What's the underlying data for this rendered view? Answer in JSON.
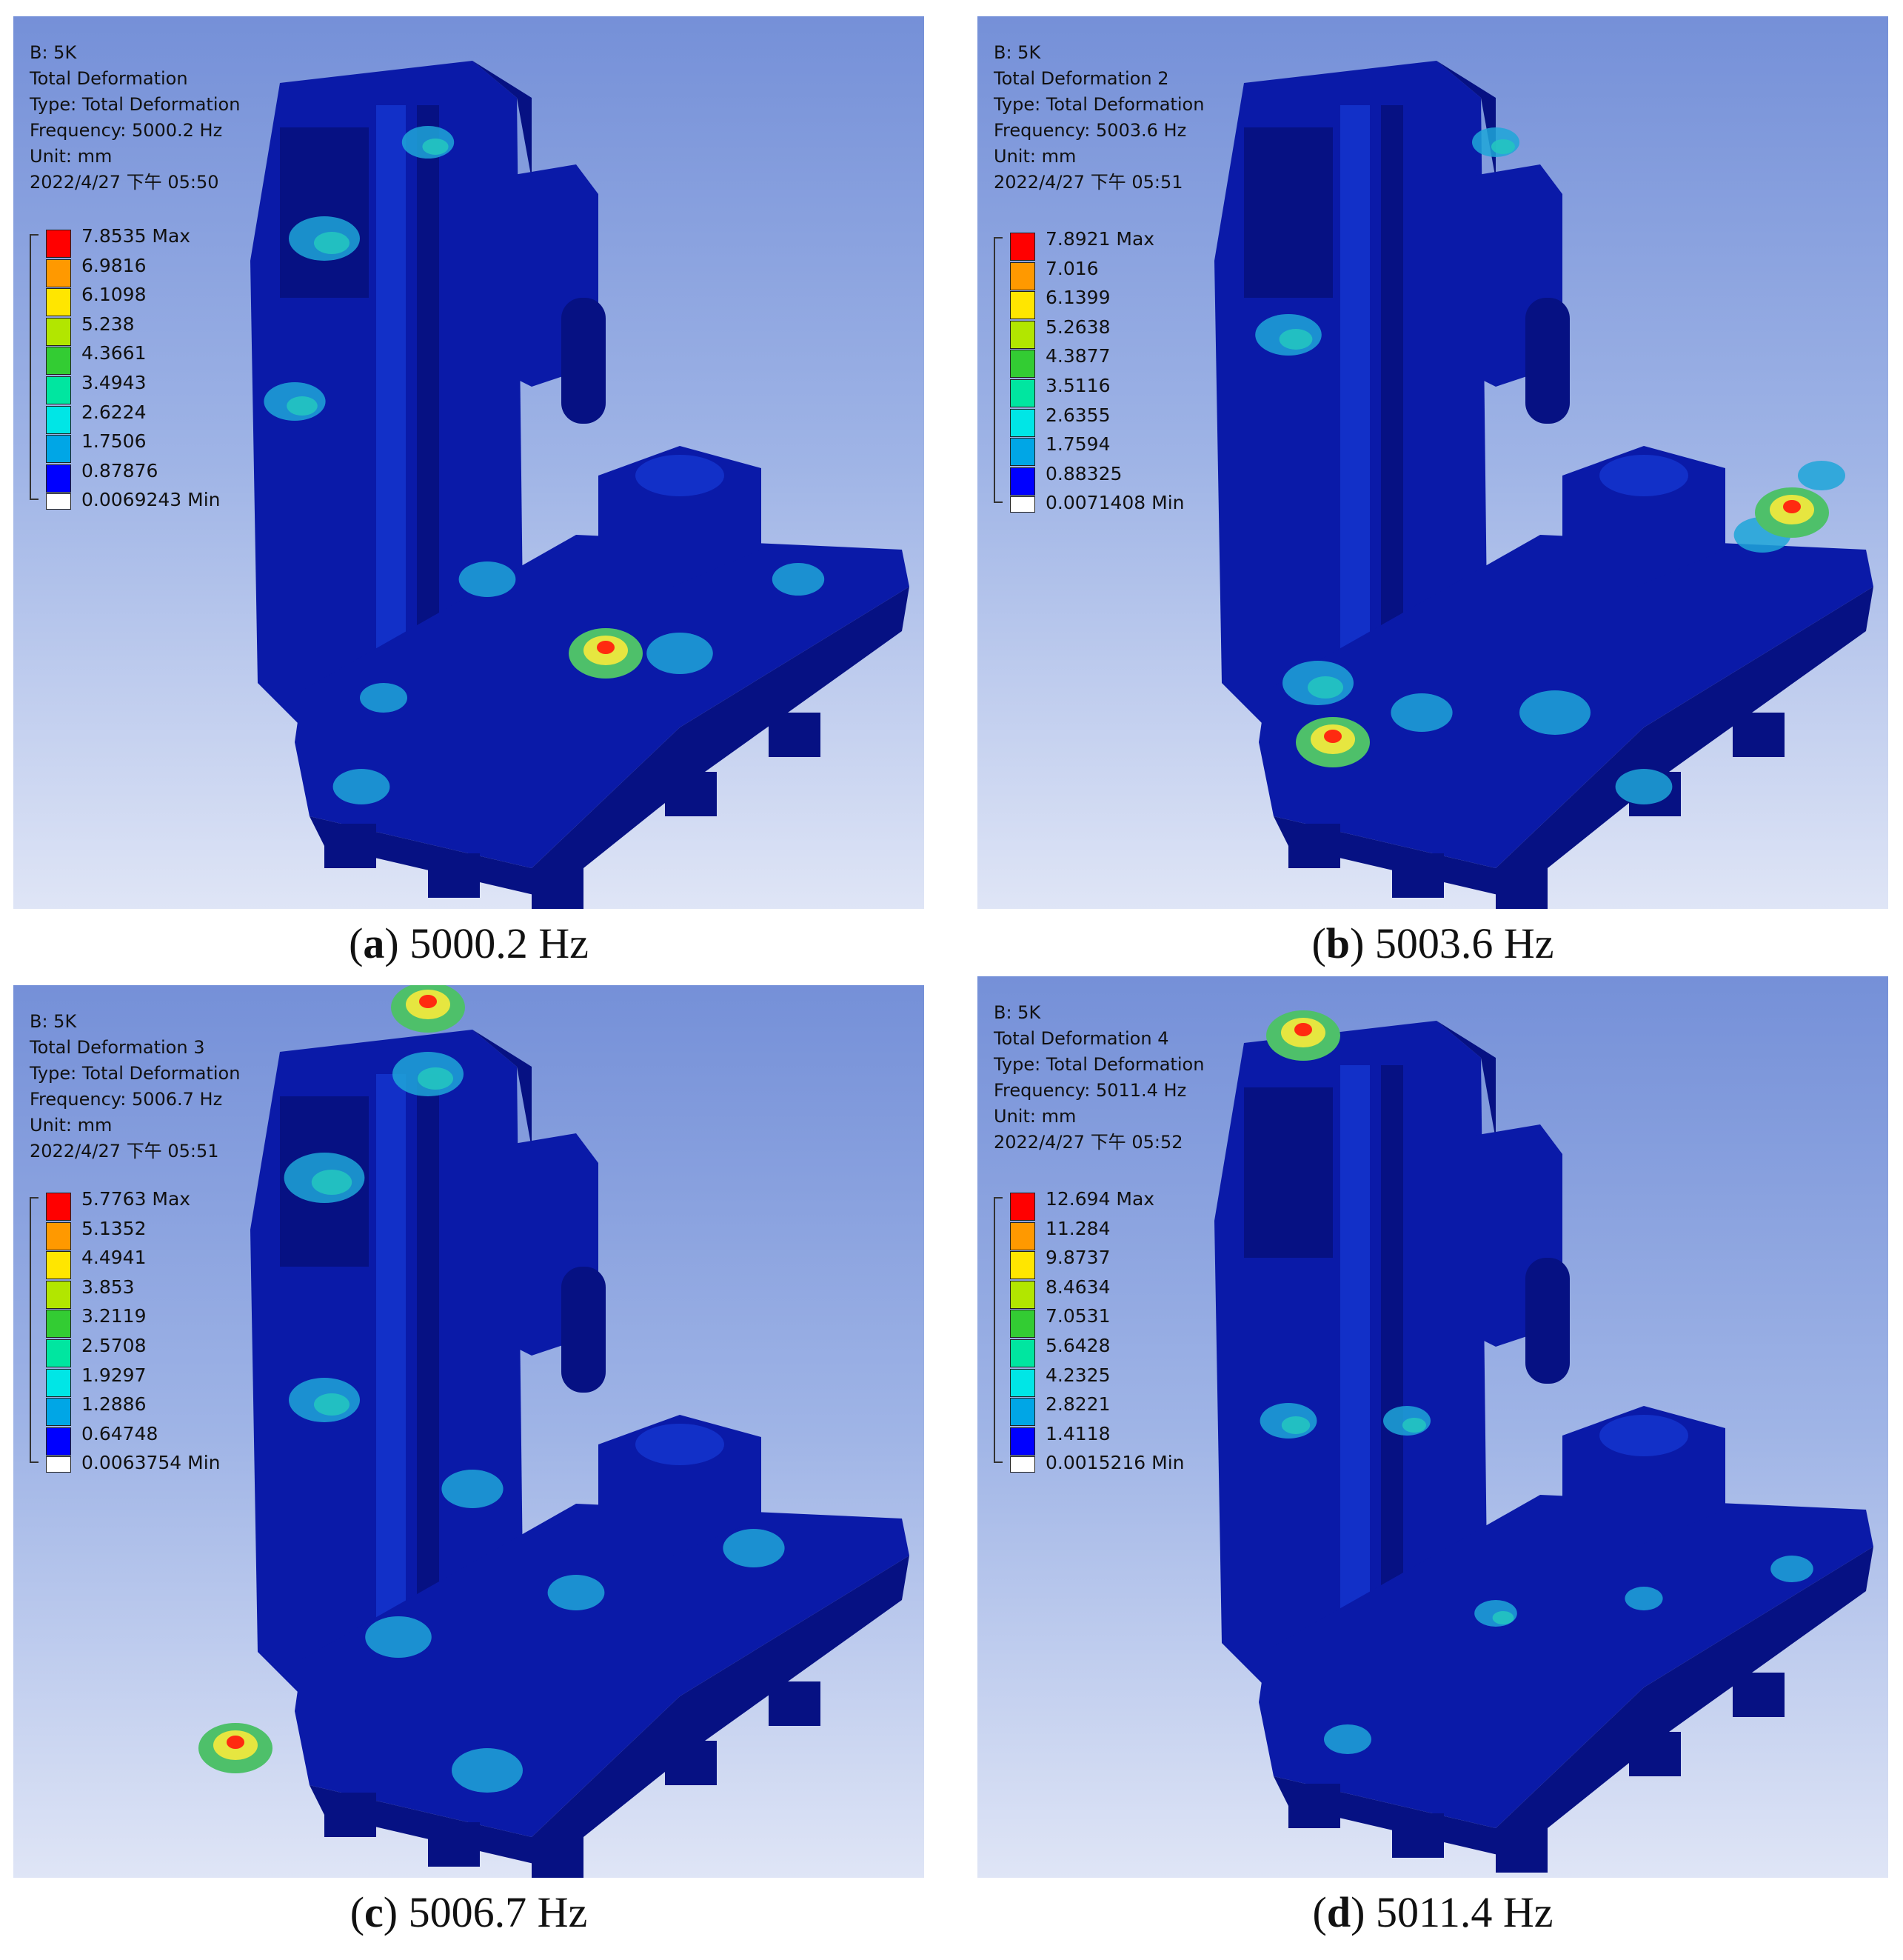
{
  "panels": [
    {
      "letter": "a",
      "caption_value": "5000.2 Hz",
      "info": [
        "B: 5K",
        "Total Deformation",
        "Type: Total Deformation",
        "Frequency: 5000.2 Hz",
        "Unit: mm",
        "2022/4/27 下午 05:50"
      ],
      "legend": [
        "7.8535 Max",
        "6.9816",
        "6.1098",
        "5.238",
        "4.3661",
        "3.4943",
        "2.6224",
        "1.7506",
        "0.87876",
        "0.0069243 Min"
      ]
    },
    {
      "letter": "b",
      "caption_value": "5003.6 Hz",
      "info": [
        "B: 5K",
        "Total Deformation 2",
        "Type: Total Deformation",
        "Frequency: 5003.6 Hz",
        "Unit: mm",
        "2022/4/27 下午 05:51"
      ],
      "legend": [
        "7.8921 Max",
        "7.016",
        "6.1399",
        "5.2638",
        "4.3877",
        "3.5116",
        "2.6355",
        "1.7594",
        "0.88325",
        "0.0071408 Min"
      ]
    },
    {
      "letter": "c",
      "caption_value": "5006.7 Hz",
      "info": [
        "B: 5K",
        "Total Deformation 3",
        "Type: Total Deformation",
        "Frequency: 5006.7 Hz",
        "Unit: mm",
        "2022/4/27 下午 05:51"
      ],
      "legend": [
        "5.7763 Max",
        "5.1352",
        "4.4941",
        "3.853",
        "3.2119",
        "2.5708",
        "1.9297",
        "1.2886",
        "0.64748",
        "0.0063754 Min"
      ]
    },
    {
      "letter": "d",
      "caption_value": "5011.4 Hz",
      "info": [
        "B: 5K",
        "Total Deformation 4",
        "Type: Total Deformation",
        "Frequency: 5011.4 Hz",
        "Unit: mm",
        "2022/4/27 下午 05:52"
      ],
      "legend": [
        "12.694 Max",
        "11.284",
        "9.8737",
        "8.4634",
        "7.0531",
        "5.6428",
        "4.2325",
        "2.8221",
        "1.4118",
        "0.0015216 Min"
      ]
    }
  ],
  "legend_colors": [
    "#ff0000",
    "#ff9900",
    "#ffe600",
    "#b2e600",
    "#33cc33",
    "#00e6a0",
    "#00e6e6",
    "#00a6e6",
    "#0000ff",
    "#ffffff"
  ],
  "model_colors": {
    "body": "#0a1aa8",
    "body_dark": "#061183",
    "body_light": "#1230c8",
    "contour_light": "#1fa6d8",
    "contour_mid": "#23c4c0",
    "hotspot_green": "#4ec06a",
    "hotspot_yellow": "#e6e640",
    "hotspot_red": "#ff2a10"
  }
}
